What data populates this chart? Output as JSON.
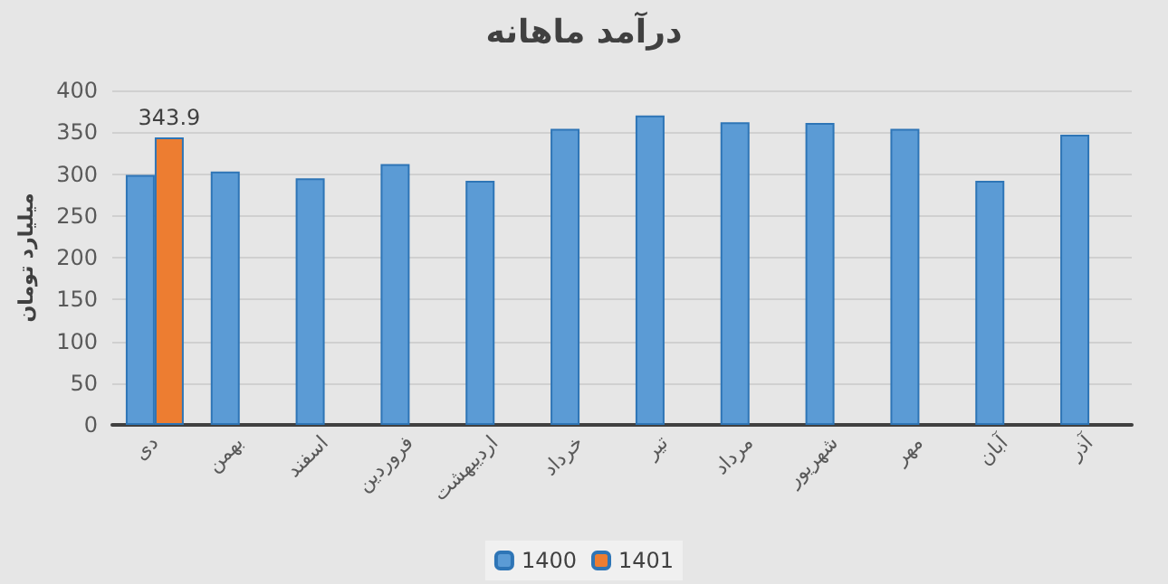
{
  "chart_data": {
    "type": "bar",
    "title": "درآمد ماهانه",
    "ylabel": "میلیارد تومان",
    "categories": [
      "دی",
      "بهمن",
      "اسفند",
      "فروردین",
      "اردیبهشت",
      "خرداد",
      "تیر",
      "مرداد",
      "شهریور",
      "مهر",
      "آبان",
      "آذر"
    ],
    "series": [
      {
        "name": "1400",
        "color": "#5b9bd5",
        "values": [
          299,
          303,
          295,
          312,
          292,
          354,
          370,
          362,
          361,
          354,
          292,
          347
        ]
      },
      {
        "name": "1401",
        "color": "#ed7d31",
        "values": [
          343.9,
          null,
          null,
          null,
          null,
          null,
          null,
          null,
          null,
          null,
          null,
          null
        ],
        "value_labels": [
          "343.9",
          null,
          null,
          null,
          null,
          null,
          null,
          null,
          null,
          null,
          null,
          null
        ]
      }
    ],
    "ylim": [
      0,
      400
    ],
    "yticks": [
      0,
      50,
      100,
      150,
      200,
      250,
      300,
      350,
      400
    ],
    "grid": "y",
    "legend": "bottom"
  }
}
